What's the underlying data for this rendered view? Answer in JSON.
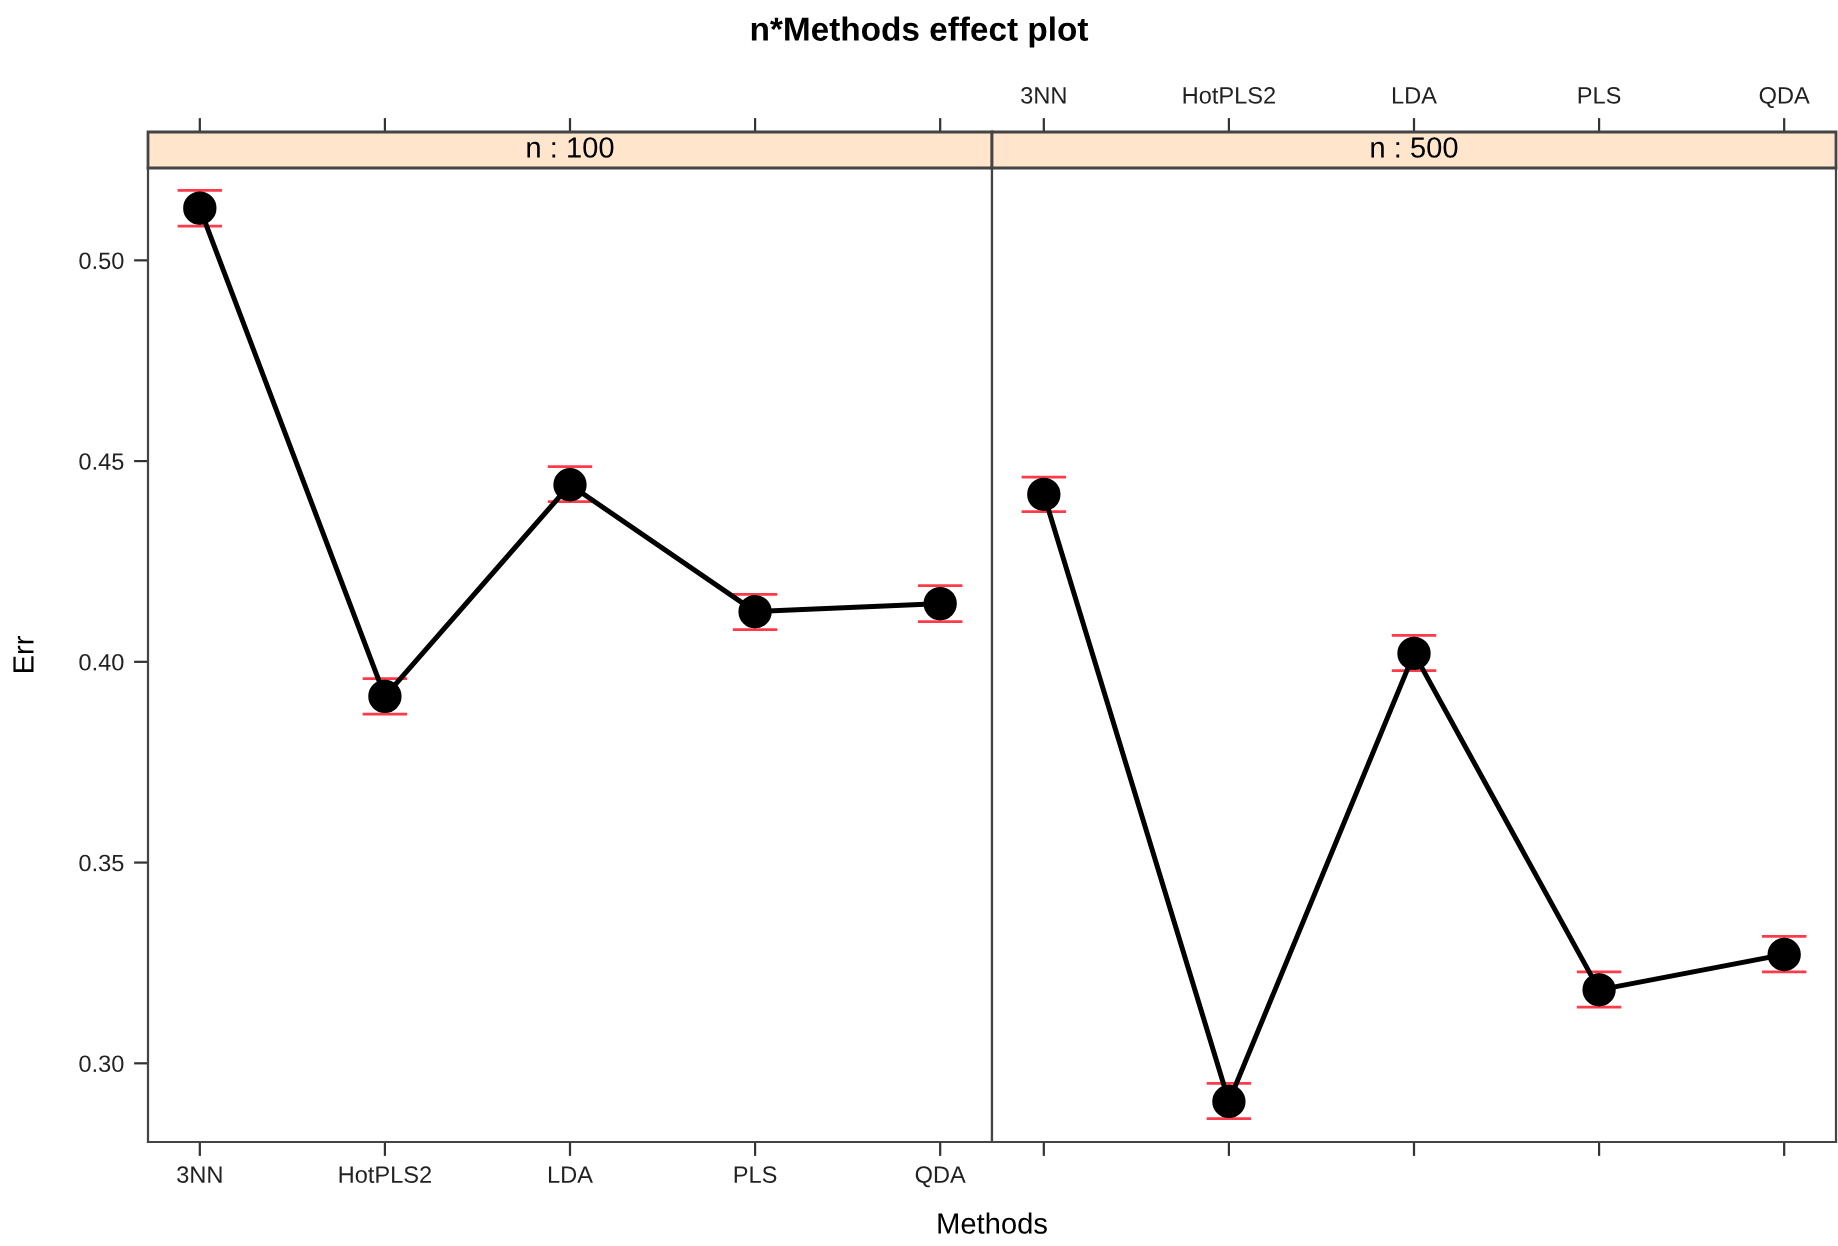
{
  "chart_data": [
    {
      "type": "line",
      "title": "n*Methods effect plot",
      "subtitle": "n : 100",
      "xlabel": "Methods",
      "ylabel": "Err",
      "categories": [
        "3NN",
        "HotPLS2",
        "LDA",
        "PLS",
        "QDA"
      ],
      "series": [
        {
          "color": "#000000",
          "values": [
            0.513,
            0.3914,
            0.4441,
            0.4125,
            0.4145
          ],
          "errors": [
            [
              0.5085,
              0.5174
            ],
            [
              0.387,
              0.3958
            ],
            [
              0.4399,
              0.4486
            ],
            [
              0.408,
              0.4168
            ],
            [
              0.41,
              0.419
            ]
          ]
        }
      ],
      "ylim": [
        0.2804,
        0.523
      ],
      "yticks": [
        {
          "value": 0.3,
          "label": "0.30"
        },
        0.35,
        {
          "value": 0.4,
          "label": "0.40"
        },
        0.45,
        {
          "value": 0.5,
          "label": "0.50"
        }
      ],
      "marker": "circle",
      "line_style": "solid",
      "grid": false
    },
    {
      "type": "line",
      "subtitle": "n : 500",
      "categories": [
        "3NN",
        "HotPLS2",
        "LDA",
        "PLS",
        "QDA"
      ],
      "series": [
        {
          "color": "#000000",
          "values": [
            0.4417,
            0.2905,
            0.4021,
            0.3183,
            0.3271
          ],
          "errors": [
            [
              0.4374,
              0.446
            ],
            [
              0.2862,
              0.295
            ],
            [
              0.3978,
              0.4066
            ],
            [
              0.314,
              0.3228
            ],
            [
              0.3228,
              0.3316
            ]
          ]
        }
      ],
      "ylim": [
        0.2804,
        0.523
      ],
      "tick_labels": "x",
      "marker": "circle",
      "line_style": "solid",
      "grid": false
    }
  ]
}
